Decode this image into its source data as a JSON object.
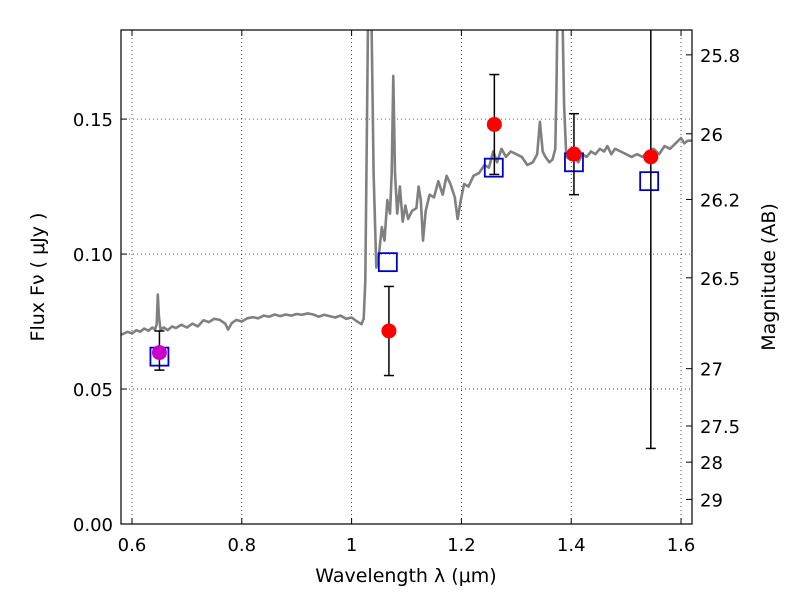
{
  "chart_data": {
    "type": "scatter",
    "xlabel": "Wavelength  λ (μm)",
    "ylabel": "Flux  Fν  ( μJy )",
    "ylabel_right": "Magnitude (AB)",
    "xlim": [
      0.58,
      1.62
    ],
    "ylim": [
      0.0,
      0.183
    ],
    "grid": true,
    "x_ticks": [
      {
        "value": 0.6,
        "label": "0.6"
      },
      {
        "value": 0.8,
        "label": "0.8"
      },
      {
        "value": 1.0,
        "label": "1"
      },
      {
        "value": 1.2,
        "label": "1.2"
      },
      {
        "value": 1.4,
        "label": "1.4"
      },
      {
        "value": 1.6,
        "label": "1.6"
      }
    ],
    "y_ticks": [
      {
        "value": 0.0,
        "label": "0.00"
      },
      {
        "value": 0.05,
        "label": "0.05"
      },
      {
        "value": 0.1,
        "label": "0.10"
      },
      {
        "value": 0.15,
        "label": "0.15"
      }
    ],
    "mag_ticks": [
      {
        "value": 25.8,
        "label": "25.8"
      },
      {
        "value": 26.0,
        "label": "26"
      },
      {
        "value": 26.2,
        "label": "26.2"
      },
      {
        "value": 26.5,
        "label": "26.5"
      },
      {
        "value": 27.0,
        "label": "27"
      },
      {
        "value": 27.5,
        "label": "27.5"
      },
      {
        "value": 28.0,
        "label": "28"
      },
      {
        "value": 29.0,
        "label": "29"
      }
    ],
    "series": [
      {
        "kind": "spectrum",
        "color": "#808080",
        "points": [
          [
            0.578,
            0.07
          ],
          [
            0.585,
            0.0705
          ],
          [
            0.592,
            0.0712
          ],
          [
            0.6,
            0.0706
          ],
          [
            0.608,
            0.0718
          ],
          [
            0.615,
            0.0712
          ],
          [
            0.622,
            0.0724
          ],
          [
            0.63,
            0.0716
          ],
          [
            0.637,
            0.0728
          ],
          [
            0.642,
            0.072
          ],
          [
            0.645,
            0.074
          ],
          [
            0.647,
            0.085
          ],
          [
            0.649,
            0.077
          ],
          [
            0.652,
            0.072
          ],
          [
            0.658,
            0.0728
          ],
          [
            0.665,
            0.0718
          ],
          [
            0.673,
            0.0732
          ],
          [
            0.68,
            0.0726
          ],
          [
            0.69,
            0.0738
          ],
          [
            0.7,
            0.0728
          ],
          [
            0.71,
            0.0742
          ],
          [
            0.72,
            0.0732
          ],
          [
            0.73,
            0.0755
          ],
          [
            0.74,
            0.0748
          ],
          [
            0.75,
            0.076
          ],
          [
            0.76,
            0.0756
          ],
          [
            0.77,
            0.0742
          ],
          [
            0.775,
            0.072
          ],
          [
            0.782,
            0.0745
          ],
          [
            0.79,
            0.0756
          ],
          [
            0.8,
            0.075
          ],
          [
            0.81,
            0.0762
          ],
          [
            0.82,
            0.0766
          ],
          [
            0.83,
            0.0762
          ],
          [
            0.84,
            0.0772
          ],
          [
            0.85,
            0.0768
          ],
          [
            0.86,
            0.0776
          ],
          [
            0.87,
            0.077
          ],
          [
            0.88,
            0.0776
          ],
          [
            0.89,
            0.0772
          ],
          [
            0.9,
            0.0778
          ],
          [
            0.91,
            0.0775
          ],
          [
            0.92,
            0.078
          ],
          [
            0.93,
            0.0776
          ],
          [
            0.94,
            0.0768
          ],
          [
            0.95,
            0.0775
          ],
          [
            0.96,
            0.077
          ],
          [
            0.97,
            0.0765
          ],
          [
            0.98,
            0.0772
          ],
          [
            0.99,
            0.076
          ],
          [
            1.0,
            0.0765
          ],
          [
            1.01,
            0.075
          ],
          [
            1.018,
            0.074
          ],
          [
            1.022,
            0.076
          ],
          [
            1.025,
            0.09
          ],
          [
            1.028,
            0.15
          ],
          [
            1.03,
            0.19
          ],
          [
            1.036,
            0.19
          ],
          [
            1.04,
            0.13
          ],
          [
            1.045,
            0.095
          ],
          [
            1.05,
            0.1
          ],
          [
            1.055,
            0.11
          ],
          [
            1.06,
            0.105
          ],
          [
            1.065,
            0.12
          ],
          [
            1.07,
            0.115
          ],
          [
            1.073,
            0.13
          ],
          [
            1.076,
            0.166
          ],
          [
            1.079,
            0.13
          ],
          [
            1.083,
            0.115
          ],
          [
            1.088,
            0.125
          ],
          [
            1.093,
            0.112
          ],
          [
            1.098,
            0.118
          ],
          [
            1.103,
            0.113
          ],
          [
            1.11,
            0.116
          ],
          [
            1.118,
            0.117
          ],
          [
            1.122,
            0.125
          ],
          [
            1.126,
            0.12
          ],
          [
            1.13,
            0.105
          ],
          [
            1.135,
            0.116
          ],
          [
            1.142,
            0.122
          ],
          [
            1.15,
            0.121
          ],
          [
            1.158,
            0.127
          ],
          [
            1.166,
            0.122
          ],
          [
            1.173,
            0.129
          ],
          [
            1.18,
            0.126
          ],
          [
            1.188,
            0.121
          ],
          [
            1.193,
            0.113
          ],
          [
            1.198,
            0.119
          ],
          [
            1.205,
            0.126
          ],
          [
            1.213,
            0.125
          ],
          [
            1.222,
            0.129
          ],
          [
            1.232,
            0.13
          ],
          [
            1.242,
            0.133
          ],
          [
            1.25,
            0.132
          ],
          [
            1.258,
            0.138
          ],
          [
            1.265,
            0.134
          ],
          [
            1.273,
            0.139
          ],
          [
            1.281,
            0.136
          ],
          [
            1.29,
            0.138
          ],
          [
            1.3,
            0.137
          ],
          [
            1.31,
            0.136
          ],
          [
            1.32,
            0.133
          ],
          [
            1.33,
            0.134
          ],
          [
            1.338,
            0.137
          ],
          [
            1.343,
            0.149
          ],
          [
            1.348,
            0.138
          ],
          [
            1.353,
            0.136
          ],
          [
            1.36,
            0.134
          ],
          [
            1.366,
            0.135
          ],
          [
            1.371,
            0.139
          ],
          [
            1.373,
            0.16
          ],
          [
            1.375,
            0.19
          ],
          [
            1.384,
            0.19
          ],
          [
            1.387,
            0.155
          ],
          [
            1.391,
            0.136
          ],
          [
            1.398,
            0.135
          ],
          [
            1.405,
            0.136
          ],
          [
            1.413,
            0.134
          ],
          [
            1.42,
            0.137
          ],
          [
            1.428,
            0.136
          ],
          [
            1.436,
            0.138
          ],
          [
            1.444,
            0.137
          ],
          [
            1.452,
            0.139
          ],
          [
            1.46,
            0.138
          ],
          [
            1.466,
            0.14
          ],
          [
            1.473,
            0.137
          ],
          [
            1.48,
            0.139
          ],
          [
            1.49,
            0.138
          ],
          [
            1.5,
            0.137
          ],
          [
            1.51,
            0.136
          ],
          [
            1.52,
            0.137
          ],
          [
            1.53,
            0.136
          ],
          [
            1.54,
            0.138
          ],
          [
            1.55,
            0.139
          ],
          [
            1.56,
            0.137
          ],
          [
            1.57,
            0.14
          ],
          [
            1.58,
            0.139
          ],
          [
            1.59,
            0.141
          ],
          [
            1.6,
            0.143
          ],
          [
            1.606,
            0.141
          ],
          [
            1.612,
            0.142
          ],
          [
            1.62,
            0.142
          ]
        ]
      },
      {
        "kind": "model_points",
        "marker": "open-square",
        "color": "#0000cc",
        "points": [
          [
            0.65,
            0.062
          ],
          [
            1.066,
            0.097
          ],
          [
            1.259,
            0.132
          ],
          [
            1.405,
            0.134
          ],
          [
            1.542,
            0.127
          ]
        ]
      },
      {
        "kind": "observed_points",
        "marker": "filled-circle",
        "color": "#ff0000",
        "points": [
          {
            "x": 0.65,
            "y": 0.0635,
            "err_lo": 0.0065,
            "err_hi": 0.008,
            "color": "#cc00cc"
          },
          {
            "x": 1.068,
            "y": 0.0715,
            "err_lo": 0.0165,
            "err_hi": 0.0165
          },
          {
            "x": 1.26,
            "y": 0.148,
            "err_lo": 0.0185,
            "err_hi": 0.0185
          },
          {
            "x": 1.405,
            "y": 0.137,
            "err_lo": 0.015,
            "err_hi": 0.015
          },
          {
            "x": 1.545,
            "y": 0.136,
            "err_lo": 0.108,
            "err_hi": 0.05
          }
        ]
      }
    ]
  }
}
